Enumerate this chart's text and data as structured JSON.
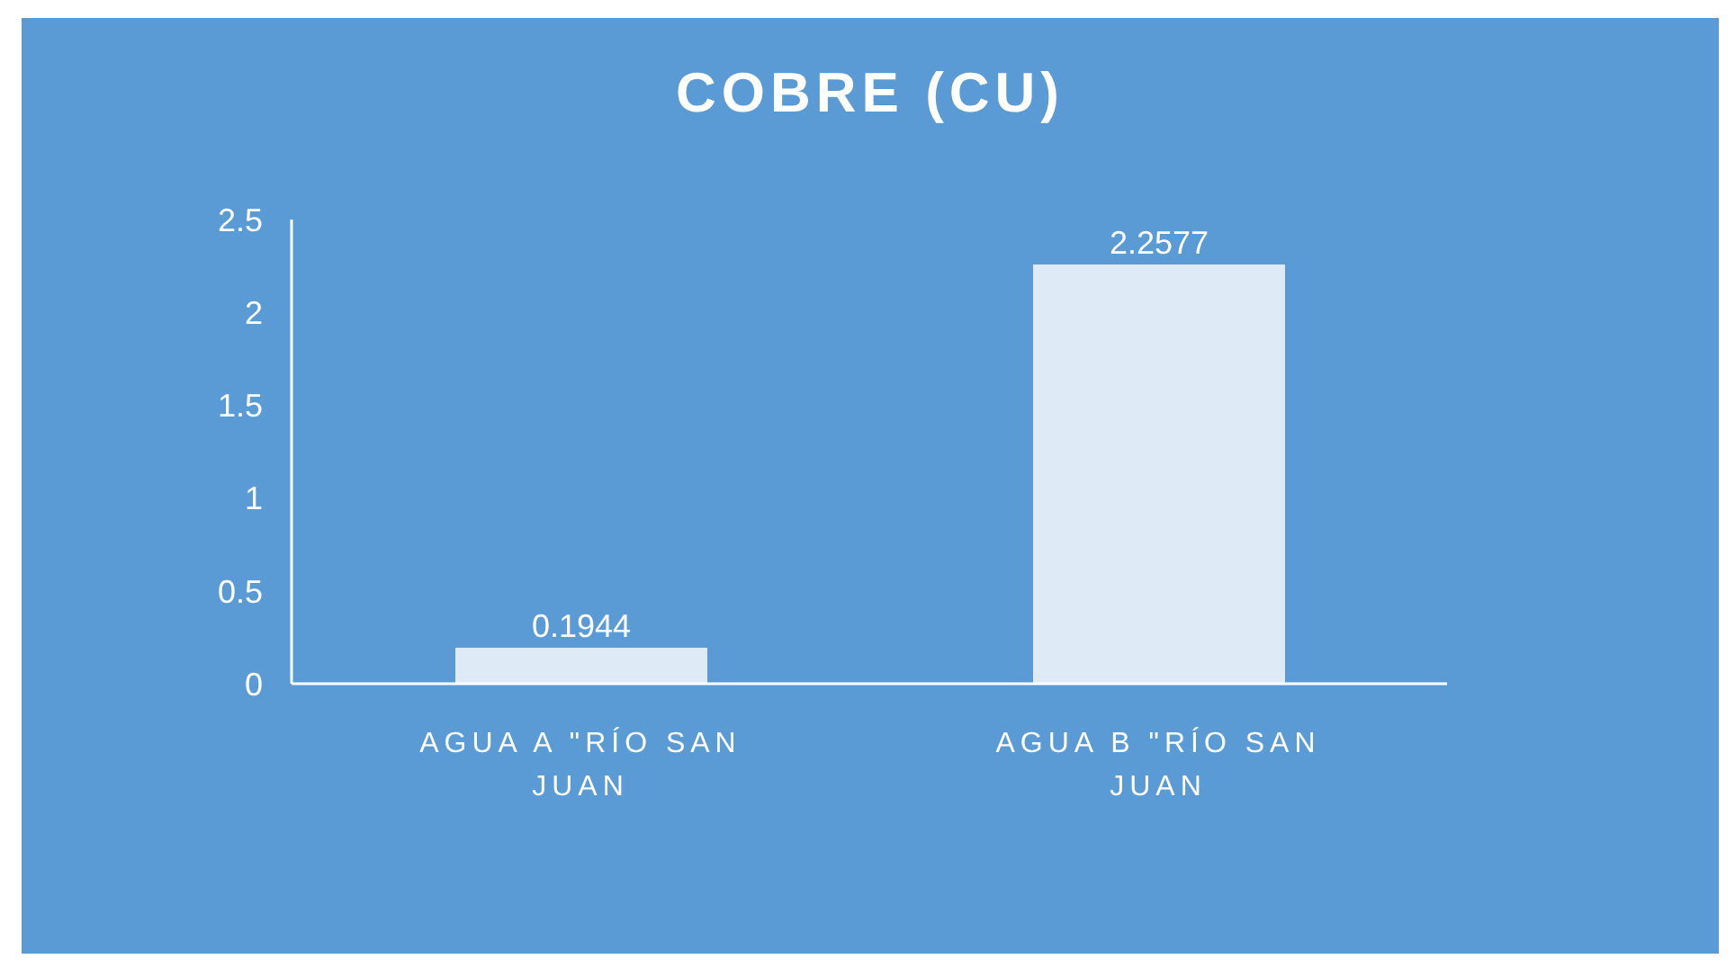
{
  "chart_data": {
    "type": "bar",
    "title": "COBRE (CU)",
    "categories": [
      "AGUA A \"RÍO SAN JUAN",
      "AGUA B \"RÍO SAN JUAN"
    ],
    "values": [
      0.1944,
      2.2577
    ],
    "color": "#deebf7",
    "ylim": [
      0,
      2.5
    ],
    "yticks": [
      0,
      0.5,
      1,
      1.5,
      2,
      2.5
    ],
    "grid": false,
    "data_labels": true
  }
}
